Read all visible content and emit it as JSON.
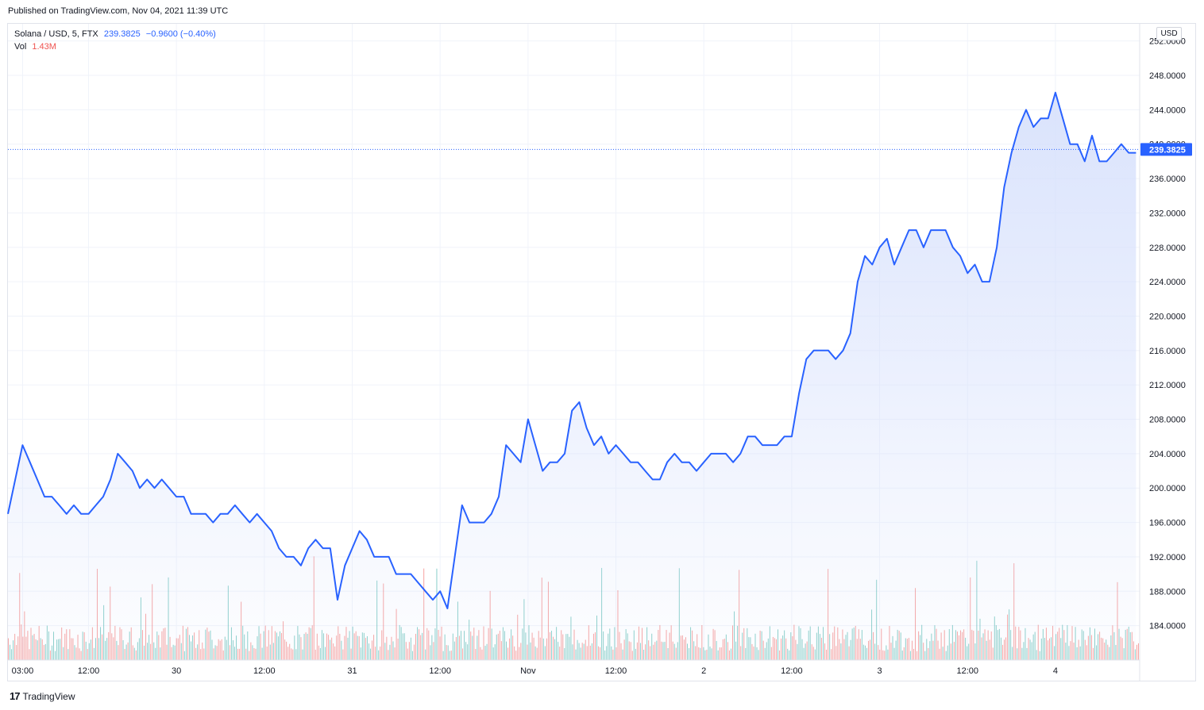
{
  "header": {
    "published": "Published on TradingView.com, Nov 04, 2021 11:39 UTC"
  },
  "legend": {
    "symbol": "Solana / USD, 5, FTX",
    "price": "239.3825",
    "change": "−0.9600 (−0.40%)",
    "vol_label": "Vol",
    "vol_value": "1.43M"
  },
  "price_axis": {
    "currency": "USD",
    "last_price_label": "239.3825"
  },
  "footer": {
    "brand": "TradingView",
    "logo_text": "17"
  },
  "colors": {
    "line": "#2962ff",
    "area_fill": "#d6e0fc",
    "vol_up": "#26a69a",
    "vol_down": "#ef5350",
    "grid": "#f0f3fa",
    "last_price_bg": "#2962ff"
  },
  "chart_data": {
    "type": "area",
    "title": "Solana / USD, 5, FTX",
    "ylim": [
      180,
      254
    ],
    "y_ticks": [
      184,
      188,
      192,
      196,
      200,
      204,
      208,
      212,
      216,
      220,
      224,
      228,
      232,
      236,
      240,
      244,
      248,
      252
    ],
    "y_tick_labels": [
      "184.0000",
      "188.0000",
      "192.0000",
      "196.0000",
      "200.0000",
      "204.0000",
      "208.0000",
      "212.0000",
      "216.0000",
      "220.0000",
      "224.0000",
      "228.0000",
      "232.0000",
      "236.0000",
      "240.0000",
      "244.0000",
      "248.0000",
      "252.0000"
    ],
    "x_tick_labels": [
      "03:00",
      "12:00",
      "30",
      "12:00",
      "31",
      "12:00",
      "Nov",
      "12:00",
      "2",
      "12:00",
      "3",
      "12:00",
      "4"
    ],
    "x_tick_hours": [
      3,
      12,
      24,
      36,
      48,
      60,
      72,
      84,
      96,
      108,
      120,
      132,
      144
    ],
    "x_range_hours": [
      1,
      155.5
    ],
    "last_price": 239.3825,
    "series": [
      {
        "name": "Solana / USD",
        "x_hours": [
          1,
          2,
          3,
          4,
          5,
          6,
          7,
          8,
          9,
          10,
          11,
          12,
          13,
          14,
          15,
          16,
          17,
          18,
          19,
          20,
          21,
          22,
          23,
          24,
          25,
          26,
          27,
          28,
          29,
          30,
          31,
          32,
          33,
          34,
          35,
          36,
          37,
          38,
          39,
          40,
          41,
          42,
          43,
          44,
          45,
          46,
          47,
          48,
          49,
          50,
          51,
          52,
          53,
          54,
          55,
          56,
          57,
          58,
          59,
          60,
          61,
          62,
          63,
          64,
          65,
          66,
          67,
          68,
          69,
          70,
          71,
          72,
          73,
          74,
          75,
          76,
          77,
          78,
          79,
          80,
          81,
          82,
          83,
          84,
          85,
          86,
          87,
          88,
          89,
          90,
          91,
          92,
          93,
          94,
          95,
          96,
          97,
          98,
          99,
          100,
          101,
          102,
          103,
          104,
          105,
          106,
          107,
          108,
          109,
          110,
          111,
          112,
          113,
          114,
          115,
          116,
          117,
          118,
          119,
          120,
          121,
          122,
          123,
          124,
          125,
          126,
          127,
          128,
          129,
          130,
          131,
          132,
          133,
          134,
          135,
          136,
          137,
          138,
          139,
          140,
          141,
          142,
          143,
          144,
          145,
          146,
          147,
          148,
          149,
          150,
          151,
          152,
          153,
          154,
          155
        ],
        "values": [
          197,
          201,
          205,
          203,
          201,
          199,
          199,
          198,
          197,
          198,
          197,
          197,
          198,
          199,
          201,
          204,
          203,
          202,
          200,
          201,
          200,
          201,
          200,
          199,
          199,
          197,
          197,
          197,
          196,
          197,
          197,
          198,
          197,
          196,
          197,
          196,
          195,
          193,
          192,
          192,
          191,
          193,
          194,
          193,
          193,
          187,
          191,
          193,
          195,
          194,
          192,
          192,
          192,
          190,
          190,
          190,
          189,
          188,
          187,
          188,
          186,
          192,
          198,
          196,
          196,
          196,
          197,
          199,
          205,
          204,
          203,
          208,
          205,
          202,
          203,
          203,
          204,
          209,
          210,
          207,
          205,
          206,
          204,
          205,
          204,
          203,
          203,
          202,
          201,
          201,
          203,
          204,
          203,
          203,
          202,
          203,
          204,
          204,
          204,
          203,
          204,
          206,
          206,
          205,
          205,
          205,
          206,
          206,
          211,
          215,
          216,
          216,
          216,
          215,
          216,
          218,
          224,
          227,
          226,
          228,
          229,
          226,
          228,
          230,
          230,
          228,
          230,
          230,
          230,
          228,
          227,
          225,
          226,
          224,
          224,
          228,
          235,
          239,
          242,
          244,
          242,
          243,
          243,
          246,
          243,
          240,
          240,
          238,
          241,
          238,
          238,
          239,
          240,
          239,
          239
        ]
      }
    ],
    "volume_label": "Vol",
    "volume_ylim": [
      0,
      18
    ],
    "volume_units": "M"
  }
}
